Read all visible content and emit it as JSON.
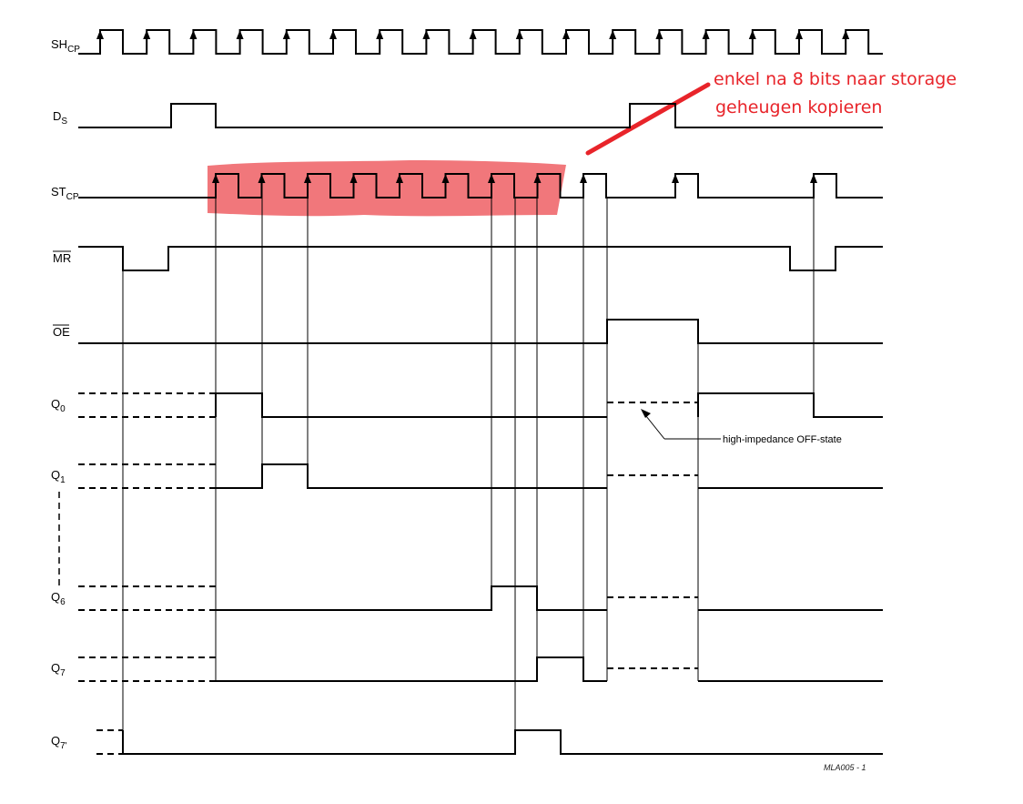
{
  "signals": [
    {
      "id": "shcp",
      "name": "SH",
      "sub": "CP"
    },
    {
      "id": "ds",
      "name": "D",
      "sub": "S"
    },
    {
      "id": "stcp",
      "name": "ST",
      "sub": "CP"
    },
    {
      "id": "mr",
      "name": "MR",
      "sub": "",
      "overline": true
    },
    {
      "id": "oe",
      "name": "OE",
      "sub": "",
      "overline": true
    },
    {
      "id": "q0",
      "name": "Q",
      "sub": "0"
    },
    {
      "id": "q1",
      "name": "Q",
      "sub": "1"
    },
    {
      "id": "q6",
      "name": "Q",
      "sub": "6"
    },
    {
      "id": "q7",
      "name": "Q",
      "sub": "7"
    },
    {
      "id": "q7p",
      "name": "Q",
      "sub": "7'"
    }
  ],
  "annotations": {
    "note_line1": "enkel na 8 bits naar storage",
    "note_line2": "geheugen kopieren",
    "hiz_label": "high-impedance OFF-state",
    "figure_ref": "MLA005 - 1"
  },
  "colors": {
    "note": "#e8242a",
    "highlight": "#e8242a",
    "wave": "#000000"
  }
}
